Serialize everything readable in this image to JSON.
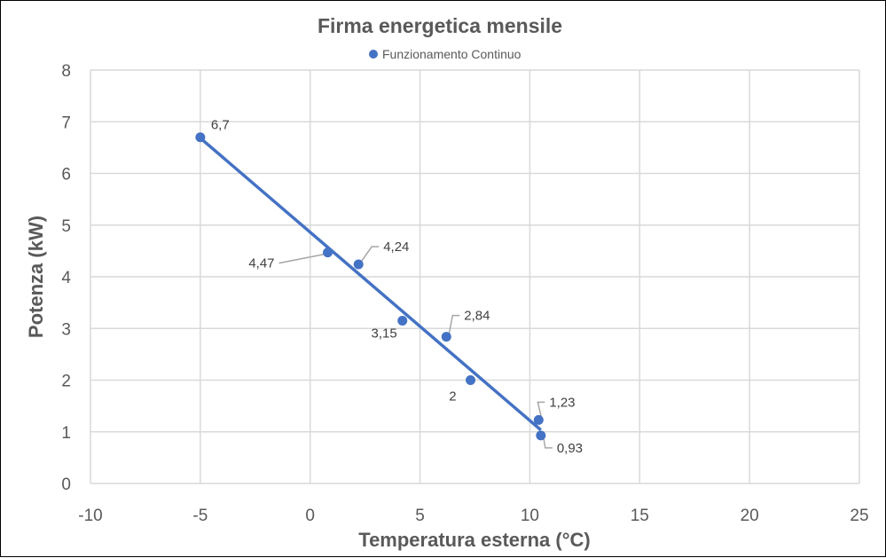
{
  "chart_data": {
    "type": "scatter",
    "title": "Firma energetica mensile",
    "xlabel": "Temperatura esterna (°C)",
    "ylabel": "Potenza (kW)",
    "xlim": [
      -10,
      25
    ],
    "ylim": [
      0,
      8
    ],
    "xticks": [
      "-10",
      "-5",
      "0",
      "5",
      "10",
      "15",
      "20",
      "25"
    ],
    "yticks": [
      "0",
      "1",
      "2",
      "3",
      "4",
      "5",
      "6",
      "7",
      "8"
    ],
    "grid": true,
    "legend": "top",
    "trendline": "linear",
    "series": [
      {
        "name": "Funzionamento Continuo",
        "color": "#4472C4",
        "x": [
          -5,
          0.8,
          2.2,
          4.2,
          6.2,
          7.3,
          10.4,
          10.5
        ],
        "y": [
          6.7,
          4.47,
          4.24,
          3.15,
          2.84,
          2,
          1.23,
          0.93
        ],
        "labels": [
          "6,7",
          "4,47",
          "4,24",
          "3,15",
          "2,84",
          "2",
          "1,23",
          "0,93"
        ]
      }
    ]
  }
}
